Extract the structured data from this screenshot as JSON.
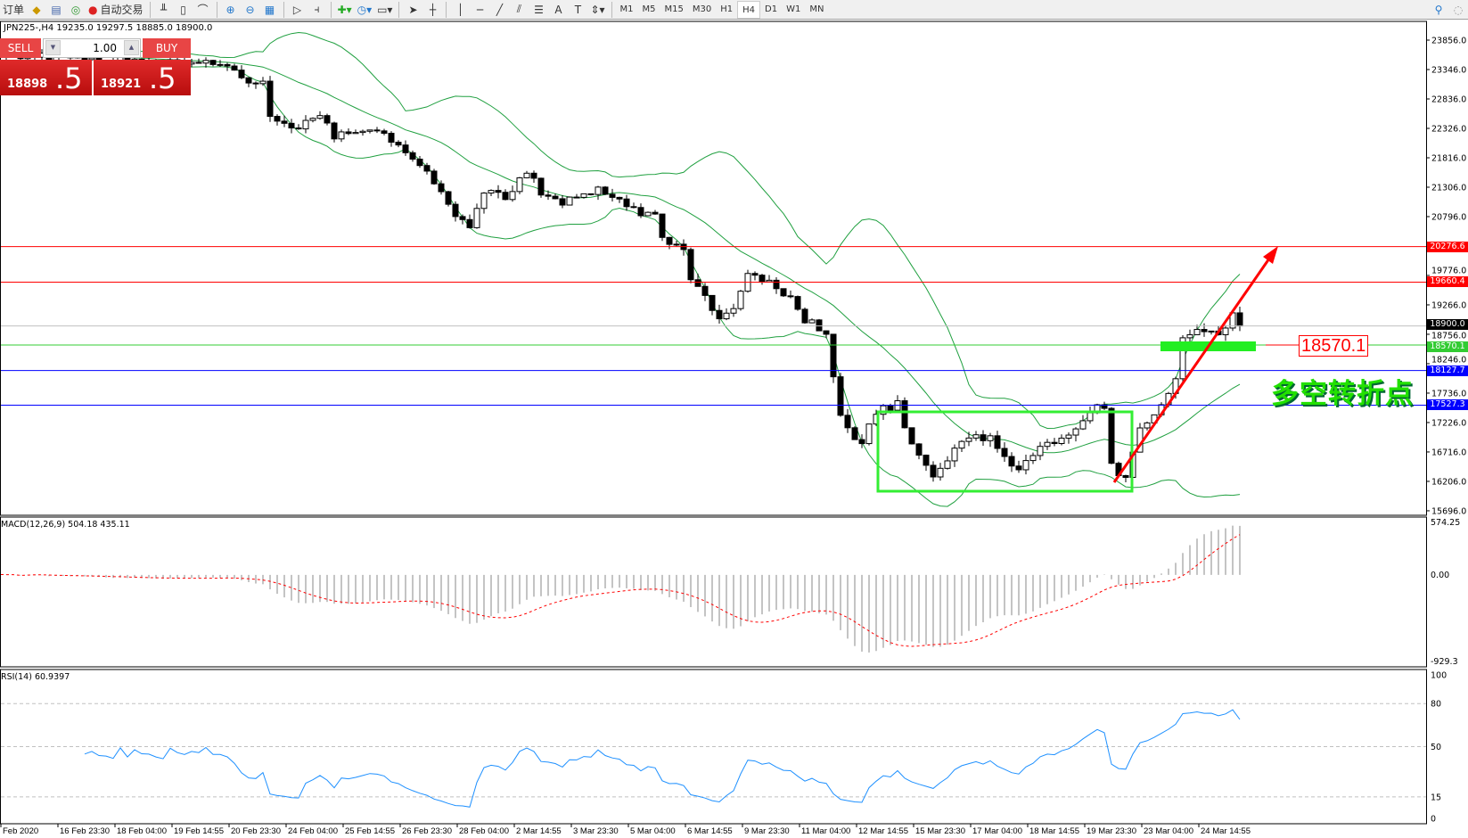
{
  "toolbar": {
    "order_label": "订单",
    "autotrade_label": "自动交易",
    "timeframes": [
      "M1",
      "M5",
      "M15",
      "M30",
      "H1",
      "H4",
      "D1",
      "W1",
      "MN"
    ],
    "active_timeframe": "H4"
  },
  "chart": {
    "title": "JPN225-,H4  19235.0 19297.5 18885.0 18900.0",
    "symbol": "JPN225-",
    "period": "H4",
    "price_ticks": [
      "23856.0",
      "23346.0",
      "22836.0",
      "22326.0",
      "21816.0",
      "21306.0",
      "20796.0",
      "19776.0",
      "19266.0",
      "18756.0",
      "18246.0",
      "17736.0",
      "17226.0",
      "16716.0",
      "16206.0",
      "15696.0"
    ],
    "levels": [
      {
        "price": 20276.6,
        "label": "20276.6",
        "color": "#ff0000"
      },
      {
        "price": 19660.4,
        "label": "19660.4",
        "color": "#ff0000"
      },
      {
        "price": 18900.0,
        "label": "18900.0",
        "color": "#000000",
        "line": "#c0c0c0"
      },
      {
        "price": 18570.1,
        "label": "18570.1",
        "color": "#33cc33"
      },
      {
        "price": 18127.7,
        "label": "18127.7",
        "color": "#0000ff"
      },
      {
        "price": 17527.3,
        "label": "17527.3",
        "color": "#0000ff"
      }
    ],
    "close_keypoints": [
      [
        0,
        23450
      ],
      [
        6,
        23400
      ],
      [
        7,
        23170
      ],
      [
        10,
        23100
      ],
      [
        11,
        22600
      ],
      [
        14,
        22280
      ],
      [
        18,
        22530
      ],
      [
        20,
        22200
      ],
      [
        23,
        22300
      ],
      [
        27,
        22280
      ],
      [
        29,
        22040
      ],
      [
        32,
        21710
      ],
      [
        35,
        21230
      ],
      [
        37,
        20820
      ],
      [
        39,
        20660
      ],
      [
        41,
        21230
      ],
      [
        44,
        21150
      ],
      [
        47,
        21550
      ],
      [
        49,
        21230
      ],
      [
        52,
        21060
      ],
      [
        55,
        21180
      ],
      [
        57,
        21310
      ],
      [
        60,
        21150
      ],
      [
        62,
        20900
      ],
      [
        65,
        20820
      ],
      [
        66,
        20410
      ],
      [
        69,
        20300
      ],
      [
        70,
        19765
      ],
      [
        73,
        19200
      ],
      [
        74,
        18950
      ],
      [
        77,
        19440
      ],
      [
        78,
        19770
      ],
      [
        81,
        19680
      ],
      [
        84,
        19360
      ],
      [
        86,
        19030
      ],
      [
        89,
        18790
      ],
      [
        90,
        18060
      ],
      [
        91,
        17410
      ],
      [
        93,
        17000
      ],
      [
        94,
        16840
      ],
      [
        96,
        17410
      ],
      [
        99,
        17570
      ],
      [
        100,
        17170
      ],
      [
        102,
        16600
      ],
      [
        104,
        16360
      ],
      [
        107,
        16760
      ],
      [
        110,
        17000
      ],
      [
        112,
        16920
      ],
      [
        114,
        16600
      ],
      [
        116,
        16360
      ],
      [
        119,
        16760
      ],
      [
        122,
        16920
      ],
      [
        124,
        17080
      ],
      [
        127,
        17570
      ],
      [
        128,
        17410
      ],
      [
        129,
        16440
      ],
      [
        131,
        16280
      ],
      [
        132,
        16760
      ],
      [
        133,
        17170
      ],
      [
        136,
        17490
      ],
      [
        138,
        18060
      ],
      [
        139,
        18710
      ],
      [
        141,
        18870
      ],
      [
        144,
        18710
      ],
      [
        145,
        18790
      ],
      [
        146,
        19200
      ],
      [
        147,
        18900
      ]
    ],
    "annotation_text": "多空转折点",
    "annotation_price_label": "18570.1",
    "bull_color": "#ffffff",
    "bear_color": "#000000",
    "band_color": "#20a040",
    "arrow_color": "#ff0000"
  },
  "trade_panel": {
    "sell_label": "SELL",
    "buy_label": "BUY",
    "lot": "1.00",
    "sell_price_main": "18898",
    "sell_price_frac": ".5",
    "buy_price_main": "18921",
    "buy_price_frac": ".5"
  },
  "macd": {
    "title": "MACD(12,26,9) 504.18 435.11",
    "ticks": [
      "574.25",
      "0.00",
      "-929.3"
    ],
    "max": 574.25,
    "min": -929.3
  },
  "rsi": {
    "title": "RSI(14) 60.9397",
    "ticks": [
      "100",
      "80",
      "50",
      "15",
      "0"
    ],
    "levels": [
      80,
      50,
      15
    ],
    "line_color": "#1e90ff"
  },
  "time_axis": [
    "Feb 2020",
    "16 Feb 23:30",
    "18 Feb 04:00",
    "19 Feb 14:55",
    "20 Feb 23:30",
    "24 Feb 04:00",
    "25 Feb 14:55",
    "26 Feb 23:30",
    "28 Feb 04:00",
    "2 Mar 14:55",
    "3 Mar 23:30",
    "5 Mar 04:00",
    "6 Mar 14:55",
    "9 Mar 23:30",
    "11 Mar 04:00",
    "12 Mar 14:55",
    "15 Mar 23:30",
    "17 Mar 04:00",
    "18 Mar 14:55",
    "19 Mar 23:30",
    "23 Mar 04:00",
    "24 Mar 14:55"
  ]
}
